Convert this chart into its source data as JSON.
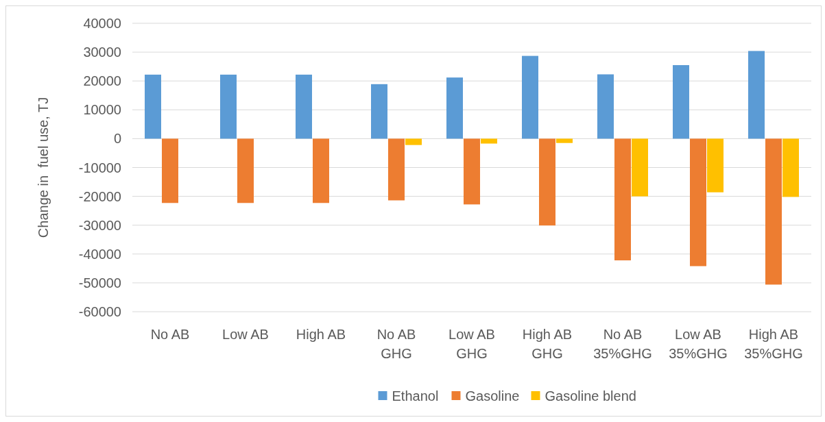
{
  "chart_data": {
    "type": "bar",
    "ylabel": "Change in  fuel use, TJ",
    "categories": [
      "No AB",
      "Low AB",
      "High AB",
      "No AB GHG",
      "Low AB GHG",
      "High AB GHG",
      "No AB 35%GHG",
      "Low AB 35%GHG",
      "High AB 35%GHG"
    ],
    "series": [
      {
        "name": "Ethanol",
        "color": "#5b9bd5",
        "values": [
          22200,
          22200,
          22200,
          18900,
          21200,
          28700,
          22300,
          25500,
          30400
        ]
      },
      {
        "name": "Gasoline",
        "color": "#ed7d31",
        "values": [
          -22300,
          -22300,
          -22300,
          -21400,
          -22800,
          -30100,
          -42200,
          -44200,
          -50600
        ]
      },
      {
        "name": "Gasoline blend",
        "color": "#ffc000",
        "values": [
          0,
          0,
          0,
          -2200,
          -1700,
          -1500,
          -20000,
          -18600,
          -20200
        ]
      }
    ],
    "ylim": [
      -60000,
      40000
    ],
    "yticks": [
      -60000,
      -50000,
      -40000,
      -30000,
      -20000,
      -10000,
      0,
      10000,
      20000,
      30000,
      40000
    ],
    "grid": "y",
    "legend": "bottom"
  }
}
